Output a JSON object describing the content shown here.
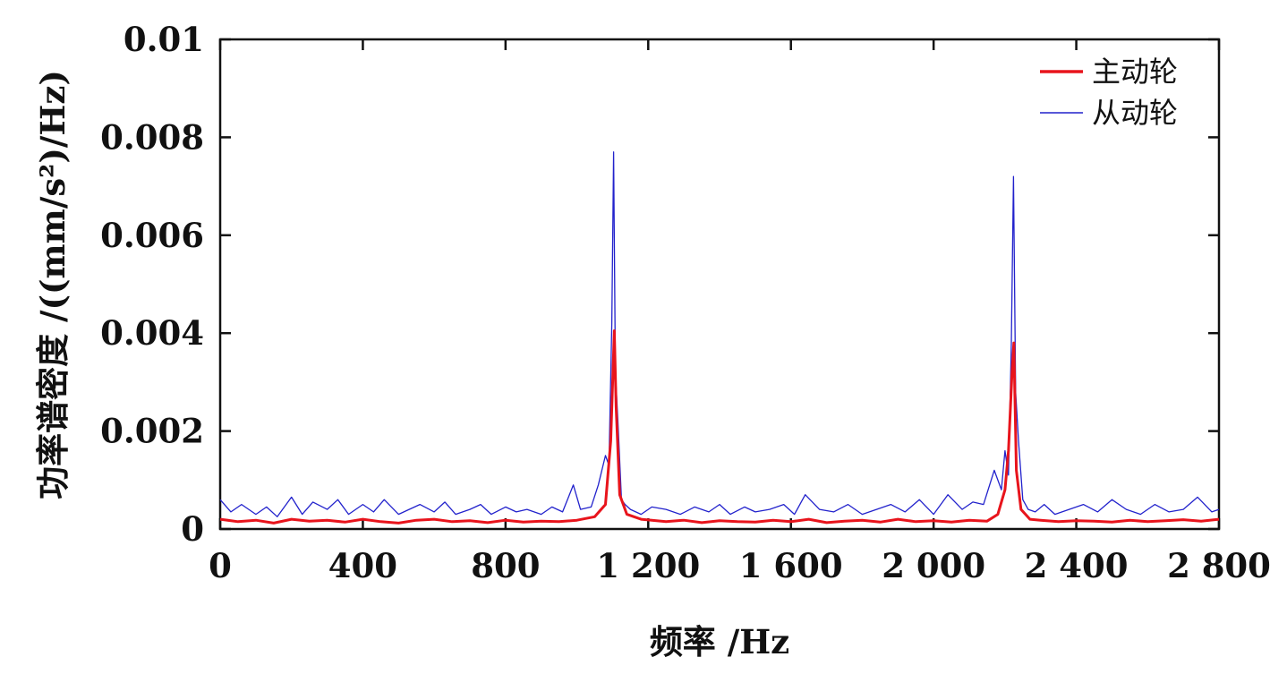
{
  "chart_data": {
    "type": "line",
    "title": "",
    "xlabel": "频率 /Hz",
    "ylabel": "功率谱密度 /((mm/s²)/Hz)",
    "xlim": [
      0,
      2800
    ],
    "ylim": [
      0,
      0.01
    ],
    "x_ticks": [
      0,
      400,
      800,
      1200,
      1600,
      2000,
      2400,
      2800
    ],
    "x_tick_labels": [
      "0",
      "400",
      "800",
      "1 200",
      "1 600",
      "2 000",
      "2 400",
      "2 800"
    ],
    "y_ticks": [
      0,
      0.002,
      0.004,
      0.006,
      0.008,
      0.01
    ],
    "y_tick_labels": [
      "0",
      "0.002",
      "0.004",
      "0.006",
      "0.008",
      "0.01"
    ],
    "grid": false,
    "legend_position": "top-right",
    "series": [
      {
        "name": "主动轮",
        "color": "#e8141c",
        "x": [
          0,
          50,
          100,
          150,
          200,
          250,
          300,
          350,
          400,
          450,
          500,
          550,
          600,
          650,
          700,
          750,
          800,
          850,
          900,
          950,
          1000,
          1050,
          1080,
          1095,
          1105,
          1110,
          1120,
          1140,
          1180,
          1250,
          1300,
          1350,
          1400,
          1450,
          1500,
          1550,
          1600,
          1650,
          1700,
          1750,
          1800,
          1850,
          1900,
          1950,
          2000,
          2050,
          2100,
          2150,
          2180,
          2200,
          2210,
          2220,
          2225,
          2232,
          2245,
          2270,
          2300,
          2350,
          2400,
          2450,
          2500,
          2550,
          2600,
          2650,
          2700,
          2750,
          2800
        ],
        "values": [
          0.0002,
          0.00015,
          0.00018,
          0.00012,
          0.0002,
          0.00016,
          0.00018,
          0.00014,
          0.0002,
          0.00015,
          0.00012,
          0.00018,
          0.0002,
          0.00015,
          0.00017,
          0.00013,
          0.00018,
          0.00014,
          0.00016,
          0.00015,
          0.00018,
          0.00025,
          0.0005,
          0.0018,
          0.00405,
          0.0025,
          0.0007,
          0.0003,
          0.0002,
          0.00015,
          0.00018,
          0.00013,
          0.00017,
          0.00015,
          0.00014,
          0.00018,
          0.00015,
          0.0002,
          0.00013,
          0.00016,
          0.00018,
          0.00014,
          0.0002,
          0.00015,
          0.00017,
          0.00014,
          0.00018,
          0.00016,
          0.0003,
          0.0008,
          0.0016,
          0.0032,
          0.0038,
          0.0012,
          0.0004,
          0.0002,
          0.00018,
          0.00015,
          0.00017,
          0.00016,
          0.00014,
          0.00018,
          0.00015,
          0.00017,
          0.00019,
          0.00016,
          0.0002
        ]
      },
      {
        "name": "从动轮",
        "color": "#2222cc",
        "x": [
          0,
          30,
          60,
          100,
          130,
          160,
          200,
          230,
          260,
          300,
          330,
          360,
          400,
          430,
          460,
          500,
          530,
          560,
          600,
          630,
          660,
          700,
          730,
          760,
          800,
          830,
          860,
          900,
          930,
          960,
          990,
          1010,
          1040,
          1060,
          1080,
          1090,
          1098,
          1103,
          1108,
          1115,
          1125,
          1135,
          1150,
          1180,
          1210,
          1250,
          1290,
          1330,
          1370,
          1400,
          1430,
          1470,
          1500,
          1540,
          1580,
          1610,
          1640,
          1680,
          1720,
          1760,
          1800,
          1840,
          1880,
          1920,
          1960,
          2000,
          2040,
          2080,
          2110,
          2140,
          2170,
          2190,
          2200,
          2210,
          2218,
          2224,
          2230,
          2238,
          2250,
          2265,
          2285,
          2310,
          2340,
          2380,
          2420,
          2460,
          2500,
          2540,
          2580,
          2620,
          2660,
          2700,
          2740,
          2780,
          2800
        ],
        "values": [
          0.0006,
          0.00035,
          0.0005,
          0.0003,
          0.00045,
          0.00025,
          0.00065,
          0.0003,
          0.00055,
          0.0004,
          0.0006,
          0.0003,
          0.0005,
          0.00035,
          0.0006,
          0.0003,
          0.0004,
          0.0005,
          0.00035,
          0.00055,
          0.0003,
          0.0004,
          0.0005,
          0.0003,
          0.00045,
          0.00035,
          0.0004,
          0.0003,
          0.00045,
          0.00035,
          0.0009,
          0.0004,
          0.00045,
          0.0009,
          0.0015,
          0.0013,
          0.0042,
          0.0077,
          0.0032,
          0.0022,
          0.0006,
          0.0005,
          0.0004,
          0.0003,
          0.00045,
          0.0004,
          0.0003,
          0.00045,
          0.00035,
          0.0005,
          0.0003,
          0.00045,
          0.00035,
          0.0004,
          0.0005,
          0.0003,
          0.0007,
          0.0004,
          0.00035,
          0.0005,
          0.0003,
          0.0004,
          0.0005,
          0.00035,
          0.0006,
          0.0003,
          0.0007,
          0.0004,
          0.00055,
          0.0005,
          0.0012,
          0.0008,
          0.0016,
          0.0011,
          0.0038,
          0.0072,
          0.0028,
          0.0018,
          0.0006,
          0.0004,
          0.00035,
          0.0005,
          0.0003,
          0.0004,
          0.0005,
          0.00035,
          0.0006,
          0.0004,
          0.0003,
          0.0005,
          0.00035,
          0.0004,
          0.00065,
          0.00035,
          0.0004
        ]
      }
    ]
  }
}
